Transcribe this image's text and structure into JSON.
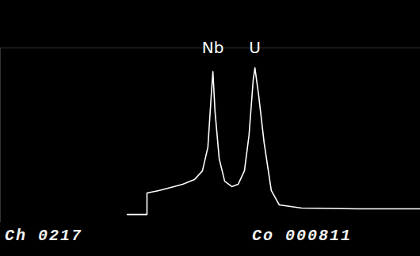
{
  "chart_data": {
    "type": "line",
    "x": [
      30.2,
      34.9,
      34.9,
      37.7,
      40.6,
      43.4,
      46.2,
      48.1,
      49.4,
      50.2,
      50.6,
      51.1,
      52.1,
      53.4,
      55.1,
      56.6,
      58.1,
      59.2,
      60.2,
      60.6,
      61.5,
      62.8,
      64.5,
      66.4,
      71.7,
      84.9,
      100
    ],
    "values": [
      4.5,
      4.5,
      16.8,
      18.2,
      20,
      21.8,
      24.5,
      29.5,
      43,
      72.7,
      86.4,
      63.6,
      36.4,
      23.6,
      20.5,
      21.8,
      29.5,
      50,
      81.8,
      88.6,
      72.7,
      45.5,
      18.2,
      10,
      8.2,
      7.7,
      7.7
    ],
    "color": "#ffffff",
    "xlim": [
      0,
      100
    ],
    "ylim": [
      0,
      100
    ],
    "tick_labels": false,
    "annotations": [
      {
        "text": "Nb",
        "x": 50.6,
        "y": 97
      },
      {
        "text": "U",
        "x": 60.6,
        "y": 97
      }
    ],
    "footer": [
      "Ch 0217",
      "Co 000811"
    ]
  }
}
